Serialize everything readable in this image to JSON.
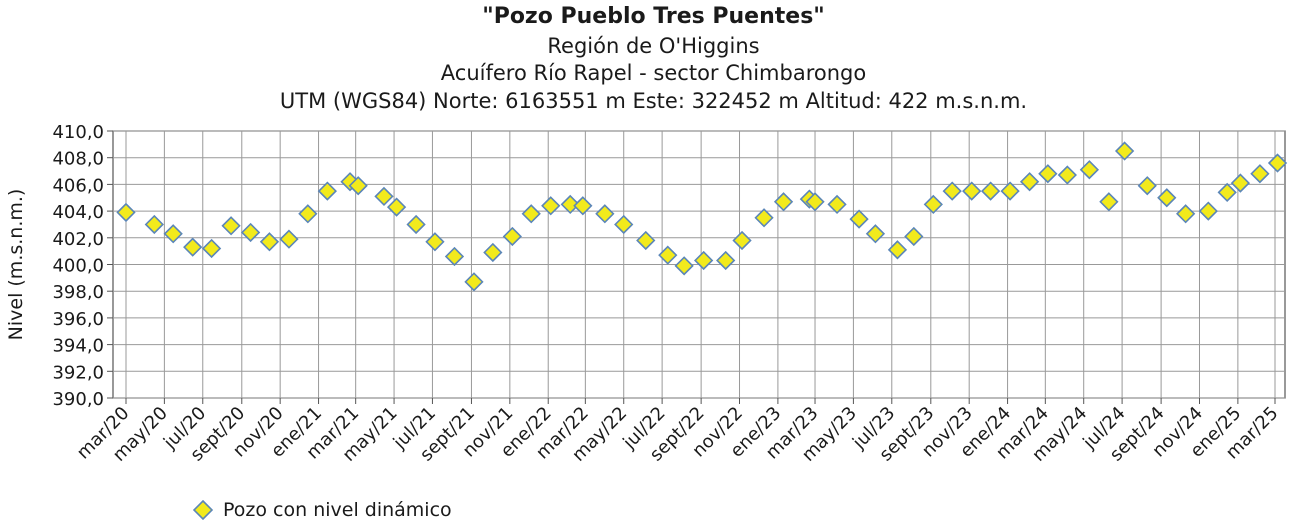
{
  "chart_data": {
    "type": "scatter",
    "title": "\"Pozo Pueblo Tres Puentes\"",
    "subtitles": [
      "Región de O'Higgins",
      "Acuífero Río Rapel - sector Chimbarongo",
      "UTM (WGS84) Norte: 6163551 m Este: 322452 m   Altitud: 422 m.s.n.m."
    ],
    "ylabel": "Nivel (m.s.n.m.)",
    "xlabel": "",
    "ylim": [
      390,
      410
    ],
    "yticks": [
      "390,0",
      "392,0",
      "394,0",
      "396,0",
      "398,0",
      "400,0",
      "402,0",
      "404,0",
      "406,0",
      "408,0",
      "410,0"
    ],
    "xlim": [
      "2020-03",
      "2025-03"
    ],
    "xticks": [
      "mar/20",
      "may/20",
      "jul/20",
      "sept/20",
      "nov/20",
      "ene/21",
      "mar/21",
      "may/21",
      "jul/21",
      "sept/21",
      "nov/21",
      "ene/22",
      "mar/22",
      "may/22",
      "jul/22",
      "sept/22",
      "nov/22",
      "ene/23",
      "mar/23",
      "may/23",
      "jul/23",
      "sept/23",
      "nov/23",
      "ene/24",
      "mar/24",
      "may/24",
      "jul/24",
      "sept/24",
      "nov/24",
      "ene/25",
      "mar/25"
    ],
    "grid": true,
    "legend_position": "bottom-left",
    "series": [
      {
        "name": "Pozo con nivel dinámico",
        "color": "#f2ea1c",
        "edge_color": "#5b86b8",
        "marker": "diamond",
        "points": [
          {
            "x": "2020-03-01",
            "y": 403.9
          },
          {
            "x": "2020-04-15",
            "y": 403.0
          },
          {
            "x": "2020-05-15",
            "y": 402.3
          },
          {
            "x": "2020-06-15",
            "y": 401.3
          },
          {
            "x": "2020-07-15",
            "y": 401.2
          },
          {
            "x": "2020-08-15",
            "y": 402.9
          },
          {
            "x": "2020-09-15",
            "y": 402.4
          },
          {
            "x": "2020-10-15",
            "y": 401.7
          },
          {
            "x": "2020-11-15",
            "y": 401.9
          },
          {
            "x": "2020-12-15",
            "y": 403.8
          },
          {
            "x": "2021-01-15",
            "y": 405.5
          },
          {
            "x": "2021-02-20",
            "y": 406.2
          },
          {
            "x": "2021-03-05",
            "y": 405.9
          },
          {
            "x": "2021-04-15",
            "y": 405.1
          },
          {
            "x": "2021-05-05",
            "y": 404.3
          },
          {
            "x": "2021-06-05",
            "y": 403.0
          },
          {
            "x": "2021-07-05",
            "y": 401.7
          },
          {
            "x": "2021-08-05",
            "y": 400.6
          },
          {
            "x": "2021-09-05",
            "y": 398.7
          },
          {
            "x": "2021-10-05",
            "y": 400.9
          },
          {
            "x": "2021-11-05",
            "y": 402.1
          },
          {
            "x": "2021-12-05",
            "y": 403.8
          },
          {
            "x": "2022-01-05",
            "y": 404.4
          },
          {
            "x": "2022-02-05",
            "y": 404.5
          },
          {
            "x": "2022-02-25",
            "y": 404.4
          },
          {
            "x": "2022-04-01",
            "y": 403.8
          },
          {
            "x": "2022-05-01",
            "y": 403.0
          },
          {
            "x": "2022-06-05",
            "y": 401.8
          },
          {
            "x": "2022-07-10",
            "y": 400.7
          },
          {
            "x": "2022-08-05",
            "y": 399.9
          },
          {
            "x": "2022-09-05",
            "y": 400.3
          },
          {
            "x": "2022-10-10",
            "y": 400.3
          },
          {
            "x": "2022-11-05",
            "y": 401.8
          },
          {
            "x": "2022-12-10",
            "y": 403.5
          },
          {
            "x": "2023-01-10",
            "y": 404.7
          },
          {
            "x": "2023-02-20",
            "y": 404.9
          },
          {
            "x": "2023-03-01",
            "y": 404.7
          },
          {
            "x": "2023-04-05",
            "y": 404.5
          },
          {
            "x": "2023-05-10",
            "y": 403.4
          },
          {
            "x": "2023-06-05",
            "y": 402.3
          },
          {
            "x": "2023-07-10",
            "y": 401.1
          },
          {
            "x": "2023-08-05",
            "y": 402.1
          },
          {
            "x": "2023-09-05",
            "y": 404.5
          },
          {
            "x": "2023-10-05",
            "y": 405.5
          },
          {
            "x": "2023-11-05",
            "y": 405.5
          },
          {
            "x": "2023-12-05",
            "y": 405.5
          },
          {
            "x": "2024-01-05",
            "y": 405.5
          },
          {
            "x": "2024-02-05",
            "y": 406.2
          },
          {
            "x": "2024-03-05",
            "y": 406.8
          },
          {
            "x": "2024-04-05",
            "y": 406.7
          },
          {
            "x": "2024-05-10",
            "y": 407.1
          },
          {
            "x": "2024-06-10",
            "y": 404.7
          },
          {
            "x": "2024-07-05",
            "y": 408.5
          },
          {
            "x": "2024-08-10",
            "y": 405.9
          },
          {
            "x": "2024-09-10",
            "y": 405.0
          },
          {
            "x": "2024-10-10",
            "y": 403.8
          },
          {
            "x": "2024-11-15",
            "y": 404.0
          },
          {
            "x": "2024-12-15",
            "y": 405.4
          },
          {
            "x": "2025-01-05",
            "y": 406.1
          },
          {
            "x": "2025-02-05",
            "y": 406.8
          },
          {
            "x": "2025-03-05",
            "y": 407.6
          }
        ]
      }
    ]
  },
  "legend": {
    "label": "Pozo con nivel dinámico",
    "icon": "diamond-marker-icon"
  }
}
